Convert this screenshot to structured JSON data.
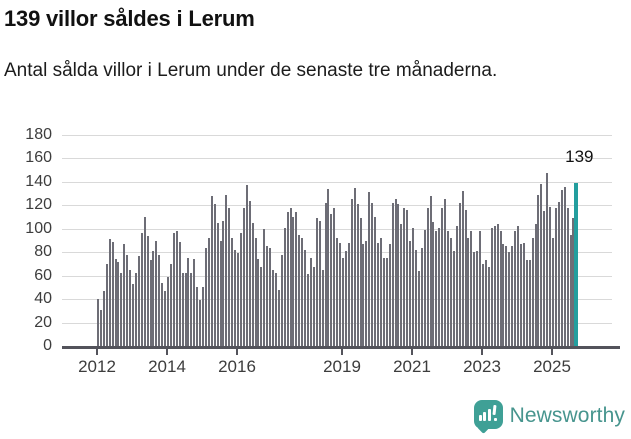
{
  "header": {
    "title": "139 villor såldes i Lerum",
    "subtitle": "Antal sålda villor i Lerum under de senaste tre månaderna."
  },
  "chart_data": {
    "type": "bar",
    "title": "139 villor såldes i Lerum",
    "subtitle": "Antal sålda villor i Lerum under de senaste tre månaderna.",
    "ylim": [
      0,
      180
    ],
    "yticks": [
      0,
      20,
      40,
      60,
      80,
      100,
      120,
      140,
      160,
      180
    ],
    "xticks": [
      2012,
      2014,
      2016,
      2019,
      2021,
      2023,
      2025
    ],
    "x_start": "2012-01",
    "frequency": "monthly",
    "grid": "horizontal",
    "legend": "none",
    "values": [
      40,
      31,
      47,
      70,
      91,
      89,
      74,
      72,
      62,
      87,
      78,
      65,
      53,
      62,
      77,
      96,
      110,
      94,
      73,
      81,
      90,
      78,
      54,
      47,
      59,
      70,
      96,
      98,
      89,
      62,
      62,
      75,
      62,
      74,
      50,
      39,
      50,
      84,
      92,
      128,
      121,
      105,
      90,
      107,
      129,
      118,
      92,
      82,
      79,
      96,
      118,
      137,
      124,
      105,
      92,
      74,
      67,
      100,
      85,
      84,
      65,
      62,
      48,
      78,
      101,
      114,
      118,
      110,
      114,
      95,
      92,
      82,
      61,
      75,
      67,
      109,
      107,
      65,
      122,
      134,
      113,
      118,
      92,
      88,
      75,
      81,
      88,
      125,
      135,
      121,
      109,
      87,
      90,
      131,
      122,
      110,
      88,
      92,
      75,
      75,
      87,
      122,
      125,
      121,
      104,
      118,
      116,
      90,
      101,
      82,
      64,
      84,
      99,
      118,
      128,
      106,
      98,
      101,
      118,
      125,
      98,
      92,
      81,
      102,
      122,
      132,
      116,
      92,
      98,
      80,
      81,
      98,
      70,
      73,
      67,
      101,
      102,
      104,
      98,
      87,
      85,
      80,
      85,
      98,
      102,
      87,
      88,
      73,
      73,
      92,
      104,
      129,
      138,
      115,
      148,
      119,
      92,
      118,
      123,
      133,
      136,
      118,
      95,
      109,
      139
    ],
    "highlight": {
      "index": 164,
      "value": 139,
      "label": "139"
    },
    "colors": {
      "bar": "#6d6d76",
      "highlight": "#239e9e",
      "gridline": "#d9d9d9",
      "axis": "#53535b",
      "brand": "#3fa096"
    }
  },
  "footer": {
    "brand": "Newsworthy",
    "logo_icon": "newsworthy-bar-chart-bubble"
  }
}
